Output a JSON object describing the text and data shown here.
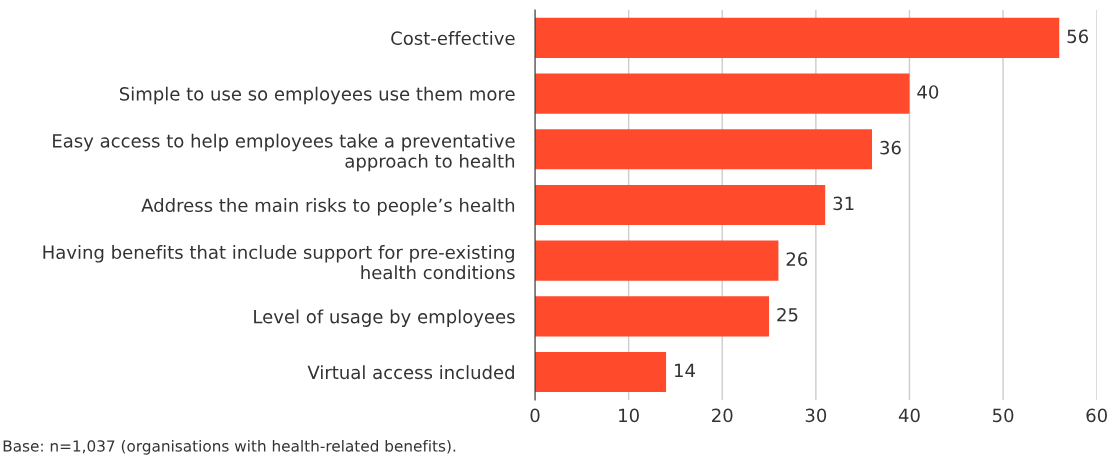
{
  "chart_data": {
    "type": "bar",
    "orientation": "horizontal",
    "categories": [
      "Cost-effective",
      "Simple to use so employees use them more",
      "Easy access to help employees take a preventative\napproach to health",
      "Address the main risks to people’s health",
      "Having benefits that include support for pre-existing\nhealth conditions",
      "Level of usage by employees",
      "Virtual access included"
    ],
    "values": [
      56,
      40,
      36,
      31,
      26,
      25,
      14
    ],
    "color": "#ff4b2b",
    "data_labels": true,
    "xlim": [
      0,
      60
    ],
    "xticks": [
      0,
      10,
      20,
      30,
      40,
      50,
      60
    ],
    "grid": "x",
    "annotations": [
      "Base: n=1,037 (organisations with health-related benefits)."
    ]
  }
}
